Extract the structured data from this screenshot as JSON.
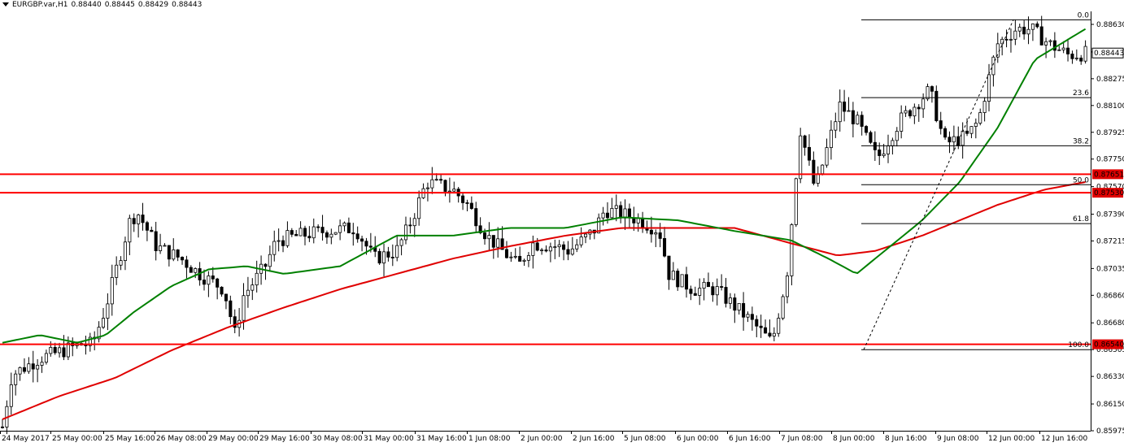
{
  "header": {
    "symbol": "EURGBP.var,H1",
    "open": "0.88440",
    "high": "0.88445",
    "low": "0.88429",
    "close": "0.88443"
  },
  "colors": {
    "bull": "#ffffff",
    "bear": "#000000",
    "ma_fast": "#008000",
    "ma_slow": "#e00000",
    "hline": "#ff0000",
    "price_label_bg": "#e00000",
    "current_label_bg": "#ffffff"
  },
  "chart_data": {
    "type": "candlestick",
    "title": "EURGBP.var,H1",
    "ylim": [
      0.85975,
      0.88715
    ],
    "y_ticks": [
      "0.88630",
      "0.88450",
      "0.88275",
      "0.88100",
      "0.87925",
      "0.87750",
      "0.87570",
      "0.87390",
      "0.87215",
      "0.87035",
      "0.86860",
      "0.86680",
      "0.86505",
      "0.86330",
      "0.86150",
      "0.85975"
    ],
    "x_tick_labels": [
      "24 May 2017",
      "25 May 00:00",
      "25 May 16:00",
      "26 May 08:00",
      "29 May 00:00",
      "29 May 16:00",
      "30 May 08:00",
      "31 May 00:00",
      "31 May 16:00",
      "1 Jun 08:00",
      "2 Jun 00:00",
      "2 Jun 16:00",
      "5 Jun 08:00",
      "6 Jun 00:00",
      "6 Jun 16:00",
      "7 Jun 08:00",
      "8 Jun 00:00",
      "8 Jun 16:00",
      "9 Jun 08:00",
      "12 Jun 00:00",
      "12 Jun 16:00"
    ],
    "candle_count": 248,
    "current_price": "0.88443",
    "horizontal_lines": [
      {
        "price": 0.87651,
        "label": "0.87651"
      },
      {
        "price": 0.8753,
        "label": "0.87530"
      },
      {
        "price": 0.8654,
        "label": "0.86540"
      }
    ],
    "fibonacci": {
      "high": 0.8866,
      "low": 0.86505,
      "levels": [
        {
          "ratio": 0.0,
          "label": "0.0"
        },
        {
          "ratio": 0.236,
          "label": "23.6"
        },
        {
          "ratio": 0.382,
          "label": "38.2"
        },
        {
          "ratio": 0.5,
          "label": "50.0"
        },
        {
          "ratio": 0.618,
          "label": "61.8"
        },
        {
          "ratio": 1.0,
          "label": "100.0"
        }
      ]
    },
    "key_points": [
      [
        0,
        0.86
      ],
      [
        5,
        0.8634
      ],
      [
        20,
        0.8645
      ],
      [
        28,
        0.8648
      ],
      [
        42,
        0.8654
      ],
      [
        48,
        0.8654
      ],
      [
        55,
        0.8678
      ],
      [
        60,
        0.87
      ],
      [
        68,
        0.8735
      ],
      [
        72,
        0.874
      ],
      [
        82,
        0.8718
      ],
      [
        95,
        0.871
      ],
      [
        105,
        0.87
      ],
      [
        118,
        0.869
      ],
      [
        124,
        0.866
      ],
      [
        128,
        0.8685
      ],
      [
        140,
        0.8705
      ],
      [
        146,
        0.8722
      ],
      [
        158,
        0.8725
      ],
      [
        172,
        0.8728
      ],
      [
        188,
        0.873
      ],
      [
        198,
        0.871
      ],
      [
        210,
        0.8715
      ],
      [
        218,
        0.8735
      ],
      [
        226,
        0.876
      ],
      [
        240,
        0.8755
      ],
      [
        248,
        0.8745
      ],
      [
        258,
        0.8725
      ],
      [
        275,
        0.8705
      ],
      [
        282,
        0.872
      ],
      [
        295,
        0.8718
      ],
      [
        302,
        0.8715
      ],
      [
        315,
        0.8728
      ],
      [
        321,
        0.8742
      ],
      [
        333,
        0.8738
      ],
      [
        340,
        0.8735
      ],
      [
        350,
        0.8728
      ],
      [
        355,
        0.87
      ],
      [
        368,
        0.869
      ],
      [
        380,
        0.869
      ],
      [
        398,
        0.867
      ],
      [
        410,
        0.8655
      ],
      [
        418,
        0.87
      ],
      [
        425,
        0.8795
      ],
      [
        433,
        0.8755
      ],
      [
        446,
        0.881
      ],
      [
        455,
        0.88
      ],
      [
        466,
        0.8775
      ],
      [
        478,
        0.88
      ],
      [
        494,
        0.882
      ],
      [
        502,
        0.8785
      ],
      [
        514,
        0.879
      ],
      [
        520,
        0.88
      ],
      [
        530,
        0.885
      ],
      [
        540,
        0.886
      ],
      [
        548,
        0.886
      ],
      [
        558,
        0.885
      ],
      [
        568,
        0.8843
      ],
      [
        577,
        0.8844
      ]
    ],
    "ma_fast_points": [
      [
        0,
        0.8655
      ],
      [
        20,
        0.866
      ],
      [
        40,
        0.8655
      ],
      [
        55,
        0.866
      ],
      [
        70,
        0.8675
      ],
      [
        90,
        0.8692
      ],
      [
        110,
        0.8703
      ],
      [
        130,
        0.8705
      ],
      [
        150,
        0.87
      ],
      [
        180,
        0.8705
      ],
      [
        210,
        0.8725
      ],
      [
        240,
        0.8725
      ],
      [
        270,
        0.873
      ],
      [
        300,
        0.873
      ],
      [
        330,
        0.8737
      ],
      [
        360,
        0.8735
      ],
      [
        390,
        0.8728
      ],
      [
        420,
        0.8722
      ],
      [
        440,
        0.871
      ],
      [
        455,
        0.87
      ],
      [
        470,
        0.8715
      ],
      [
        490,
        0.8735
      ],
      [
        510,
        0.876
      ],
      [
        530,
        0.8795
      ],
      [
        550,
        0.884
      ],
      [
        577,
        0.886
      ]
    ],
    "ma_slow_points": [
      [
        0,
        0.8605
      ],
      [
        30,
        0.862
      ],
      [
        60,
        0.8632
      ],
      [
        90,
        0.865
      ],
      [
        120,
        0.8665
      ],
      [
        150,
        0.8678
      ],
      [
        180,
        0.869
      ],
      [
        210,
        0.87
      ],
      [
        240,
        0.871
      ],
      [
        270,
        0.8718
      ],
      [
        300,
        0.8725
      ],
      [
        330,
        0.873
      ],
      [
        360,
        0.873
      ],
      [
        390,
        0.873
      ],
      [
        420,
        0.872
      ],
      [
        445,
        0.8712
      ],
      [
        465,
        0.8715
      ],
      [
        490,
        0.8725
      ],
      [
        510,
        0.8735
      ],
      [
        530,
        0.8745
      ],
      [
        555,
        0.8755
      ],
      [
        577,
        0.876
      ]
    ]
  }
}
